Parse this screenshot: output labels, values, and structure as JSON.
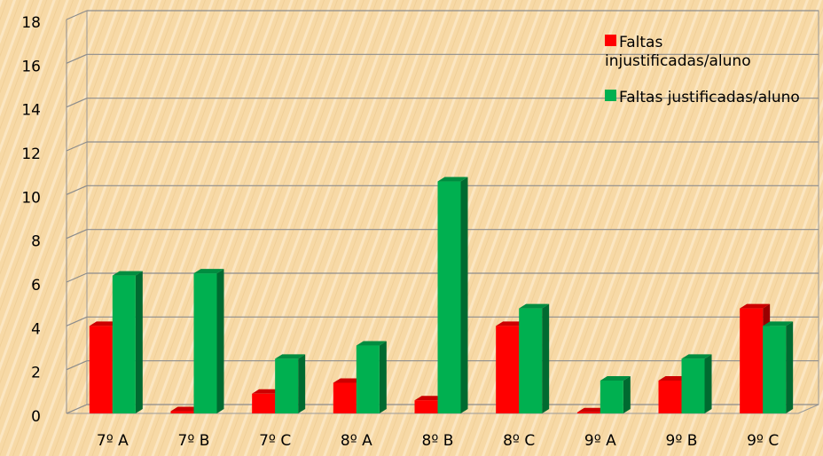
{
  "chart_data": {
    "type": "bar",
    "categories": [
      "7º A",
      "7º B",
      "7º C",
      "8º A",
      "8º B",
      "8º C",
      "9º A",
      "9º B",
      "9º C"
    ],
    "series": [
      {
        "name": "Faltas injustificadas/aluno",
        "color": "#ff0000",
        "values": [
          4.0,
          0.1,
          0.9,
          1.4,
          0.6,
          4.0,
          0.05,
          1.5,
          4.8
        ]
      },
      {
        "name": "Faltas justificadas/aluno",
        "color": "#00b050",
        "values": [
          6.3,
          6.4,
          2.5,
          3.1,
          10.6,
          4.8,
          1.5,
          2.5,
          4.0
        ]
      }
    ],
    "ylim": [
      0,
      18
    ],
    "yticks": [
      0,
      2,
      4,
      6,
      8,
      10,
      12,
      14,
      16,
      18
    ],
    "grid": true,
    "legend": "top-right"
  }
}
